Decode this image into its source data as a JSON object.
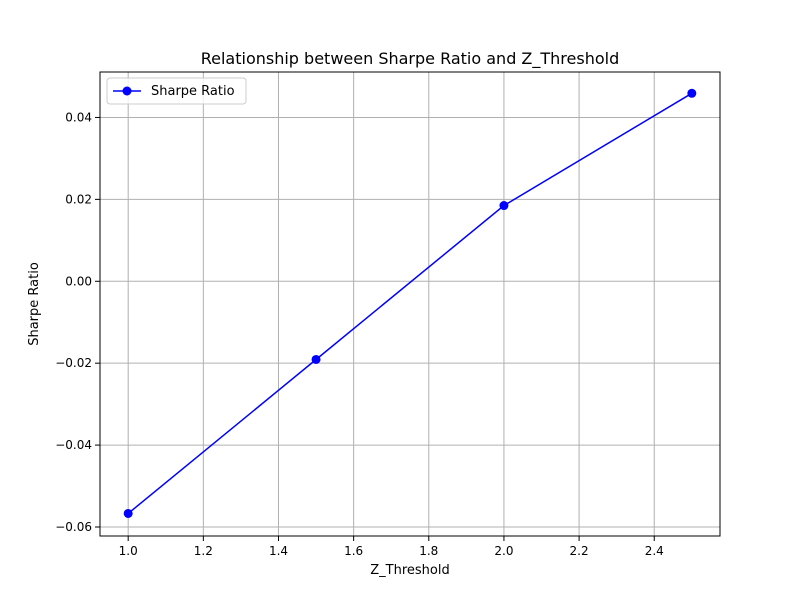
{
  "chart_data": {
    "type": "line",
    "title": "Relationship between Sharpe Ratio and Z_Threshold",
    "xlabel": "Z_Threshold",
    "ylabel": "Sharpe Ratio",
    "xlim": [
      0.925,
      2.575
    ],
    "ylim": [
      -0.0622,
      0.0511
    ],
    "xticks": [
      1.0,
      1.2,
      1.4,
      1.6,
      1.8,
      2.0,
      2.2,
      2.4
    ],
    "xtick_labels": [
      "1.0",
      "1.2",
      "1.4",
      "1.6",
      "1.8",
      "2.0",
      "2.2",
      "2.4"
    ],
    "yticks": [
      -0.06,
      -0.04,
      -0.02,
      0.0,
      0.02,
      0.04
    ],
    "ytick_labels": [
      "−0.06",
      "−0.04",
      "−0.02",
      "0.00",
      "0.02",
      "0.04"
    ],
    "grid": true,
    "legend_position": "upper-left",
    "series": [
      {
        "name": "Sharpe Ratio",
        "color": "#0000ff",
        "marker": "circle",
        "x": [
          1.0,
          1.5,
          2.0,
          2.5
        ],
        "y": [
          -0.0567,
          -0.0191,
          0.0185,
          0.0459
        ]
      }
    ]
  }
}
